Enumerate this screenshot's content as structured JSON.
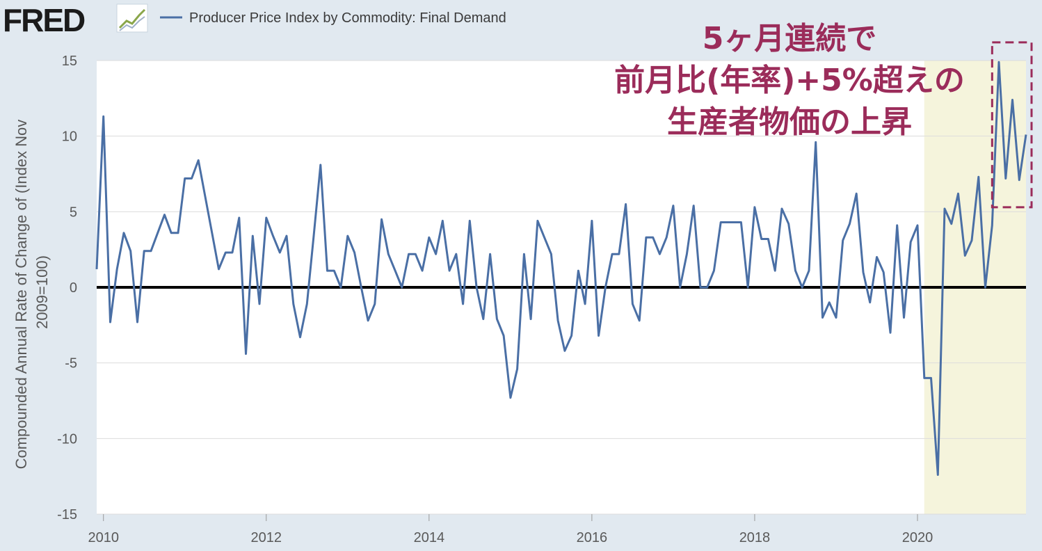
{
  "logo": {
    "text": "FRED",
    "icon": "fred-chart-icon"
  },
  "colors": {
    "line": "#4a6fa5",
    "plot_bg": "#ffffff",
    "page_bg": "#e1e9f0",
    "highlight": "#f5f4dc",
    "annotation": "#9b2c5a",
    "zero_line": "#000000",
    "grid": "#dcdcdc"
  },
  "annotation_lines": [
    "5ヶ月連続で",
    "前月比(年率)+5%超えの",
    "生産者物価の上昇"
  ],
  "chart_data": {
    "type": "line",
    "title": "",
    "xlabel": "",
    "ylabel": "Compounded Annual Rate of Change of (Index Nov 2009=100)",
    "ylabel_lines": [
      "Compounded Annual Rate of Change of (Index Nov",
      "2009=100)"
    ],
    "xlim": [
      2009.917,
      2021.333
    ],
    "ylim": [
      -15,
      15
    ],
    "x_ticks": [
      2010,
      2012,
      2014,
      2016,
      2018,
      2020
    ],
    "x_tick_labels": [
      "2010",
      "2012",
      "2014",
      "2016",
      "2018",
      "2020"
    ],
    "y_ticks": [
      -15,
      -10,
      -5,
      0,
      5,
      10,
      15
    ],
    "y_tick_labels": [
      "-15",
      "-10",
      "-5",
      "0",
      "5",
      "10",
      "15"
    ],
    "grid": true,
    "legend_position": "top-left",
    "highlight_region": {
      "x_start": 2020.083,
      "x_end": 2021.333
    },
    "highlight_box": {
      "x_start": 2020.917,
      "x_end": 2021.333,
      "y_start": 5.3,
      "y_end": 16.2
    },
    "zero_line": true,
    "series": [
      {
        "name": "Producer Price Index by Commodity: Final Demand",
        "start": "2009-12",
        "frequency": "monthly",
        "values": [
          1.2,
          11.3,
          -2.3,
          1.2,
          3.6,
          2.4,
          -2.3,
          2.4,
          2.4,
          3.6,
          4.8,
          3.6,
          3.6,
          7.2,
          7.2,
          8.4,
          6.0,
          3.6,
          1.2,
          2.3,
          2.3,
          4.6,
          -4.4,
          3.4,
          -1.1,
          4.6,
          3.4,
          2.3,
          3.4,
          -1.1,
          -3.3,
          -1.1,
          3.4,
          8.1,
          1.1,
          1.1,
          0.0,
          3.4,
          2.3,
          0.0,
          -2.2,
          -1.1,
          4.5,
          2.2,
          1.1,
          0.0,
          2.2,
          2.2,
          1.1,
          3.3,
          2.2,
          4.4,
          1.1,
          2.2,
          -1.1,
          4.4,
          0.0,
          -2.1,
          2.2,
          -2.1,
          -3.2,
          -7.3,
          -5.4,
          2.2,
          -2.1,
          4.4,
          3.3,
          2.2,
          -2.2,
          -4.2,
          -3.2,
          1.1,
          -1.1,
          4.4,
          -3.2,
          0.0,
          2.2,
          2.2,
          5.5,
          -1.1,
          -2.2,
          3.3,
          3.3,
          2.2,
          3.3,
          5.4,
          0.0,
          2.2,
          5.4,
          0.0,
          0.0,
          1.1,
          4.3,
          4.3,
          4.3,
          4.3,
          0.0,
          5.3,
          3.2,
          3.2,
          1.1,
          5.2,
          4.2,
          1.1,
          0.0,
          1.1,
          9.6,
          -2.0,
          -1.0,
          -2.0,
          3.1,
          4.2,
          6.2,
          1.0,
          -1.0,
          2.0,
          1.0,
          -3.0,
          4.1,
          -2.0,
          3.0,
          4.1,
          -6.0,
          -6.0,
          -12.4,
          5.2,
          4.2,
          6.2,
          2.1,
          3.1,
          7.3,
          0.0,
          4.1,
          14.9,
          7.2,
          12.4,
          7.1,
          10.1
        ]
      }
    ]
  }
}
